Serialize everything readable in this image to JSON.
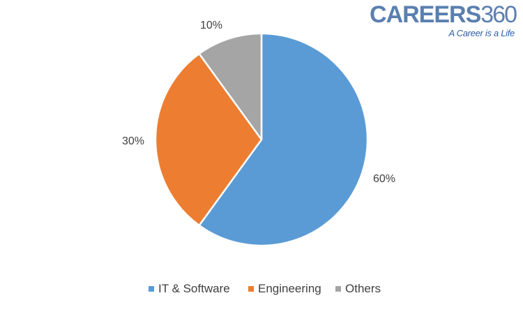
{
  "logo": {
    "name_letters": "CAREERS",
    "name_digits": "360",
    "tagline": "A Career is a Life"
  },
  "chart_data": {
    "type": "pie",
    "title": "",
    "categories": [
      "IT & Software",
      "Engineering",
      "Others"
    ],
    "values": [
      60,
      30,
      10
    ],
    "labels": [
      "60%",
      "30%",
      "10%"
    ],
    "colors": [
      "#5b9bd5",
      "#ed7d31",
      "#a5a5a5"
    ],
    "legend": "bottom",
    "start_angle": "12 o'clock",
    "direction": "clockwise"
  }
}
